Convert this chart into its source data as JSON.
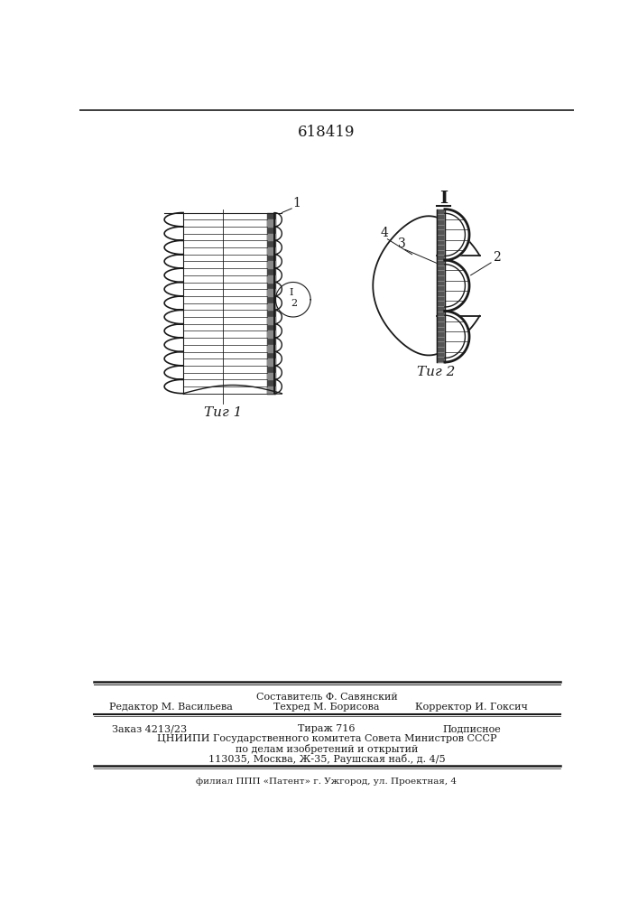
{
  "title_number": "618419",
  "fig1_label": "Τиг 1",
  "fig2_label": "Τиг 2",
  "label_1": "1",
  "label_2": "2",
  "label_3": "3",
  "label_4": "4",
  "label_I": "I",
  "footer_comp": "Составитель Ф. Савянский",
  "footer_edit": "Редактор М. Васильева",
  "footer_tech": "Техред М. Борисова",
  "footer_corr": "Корректор И. Гоксич",
  "footer_order": "Заказ 4213/23",
  "footer_circ": "Тираж 716",
  "footer_sub": "Подписное",
  "footer_org": "ЦНИИПИ Государственного комитета Совета Министров СССР",
  "footer_dept": "по делам изобретений и открытий",
  "footer_addr": "113035, Москва, Ж-35, Раушская наб., д. 4/5",
  "footer_branch": "филиал ППП «Патент» г. Ужгород, ул. Проектная, 4",
  "bg_color": "#ffffff",
  "line_color": "#1a1a1a"
}
